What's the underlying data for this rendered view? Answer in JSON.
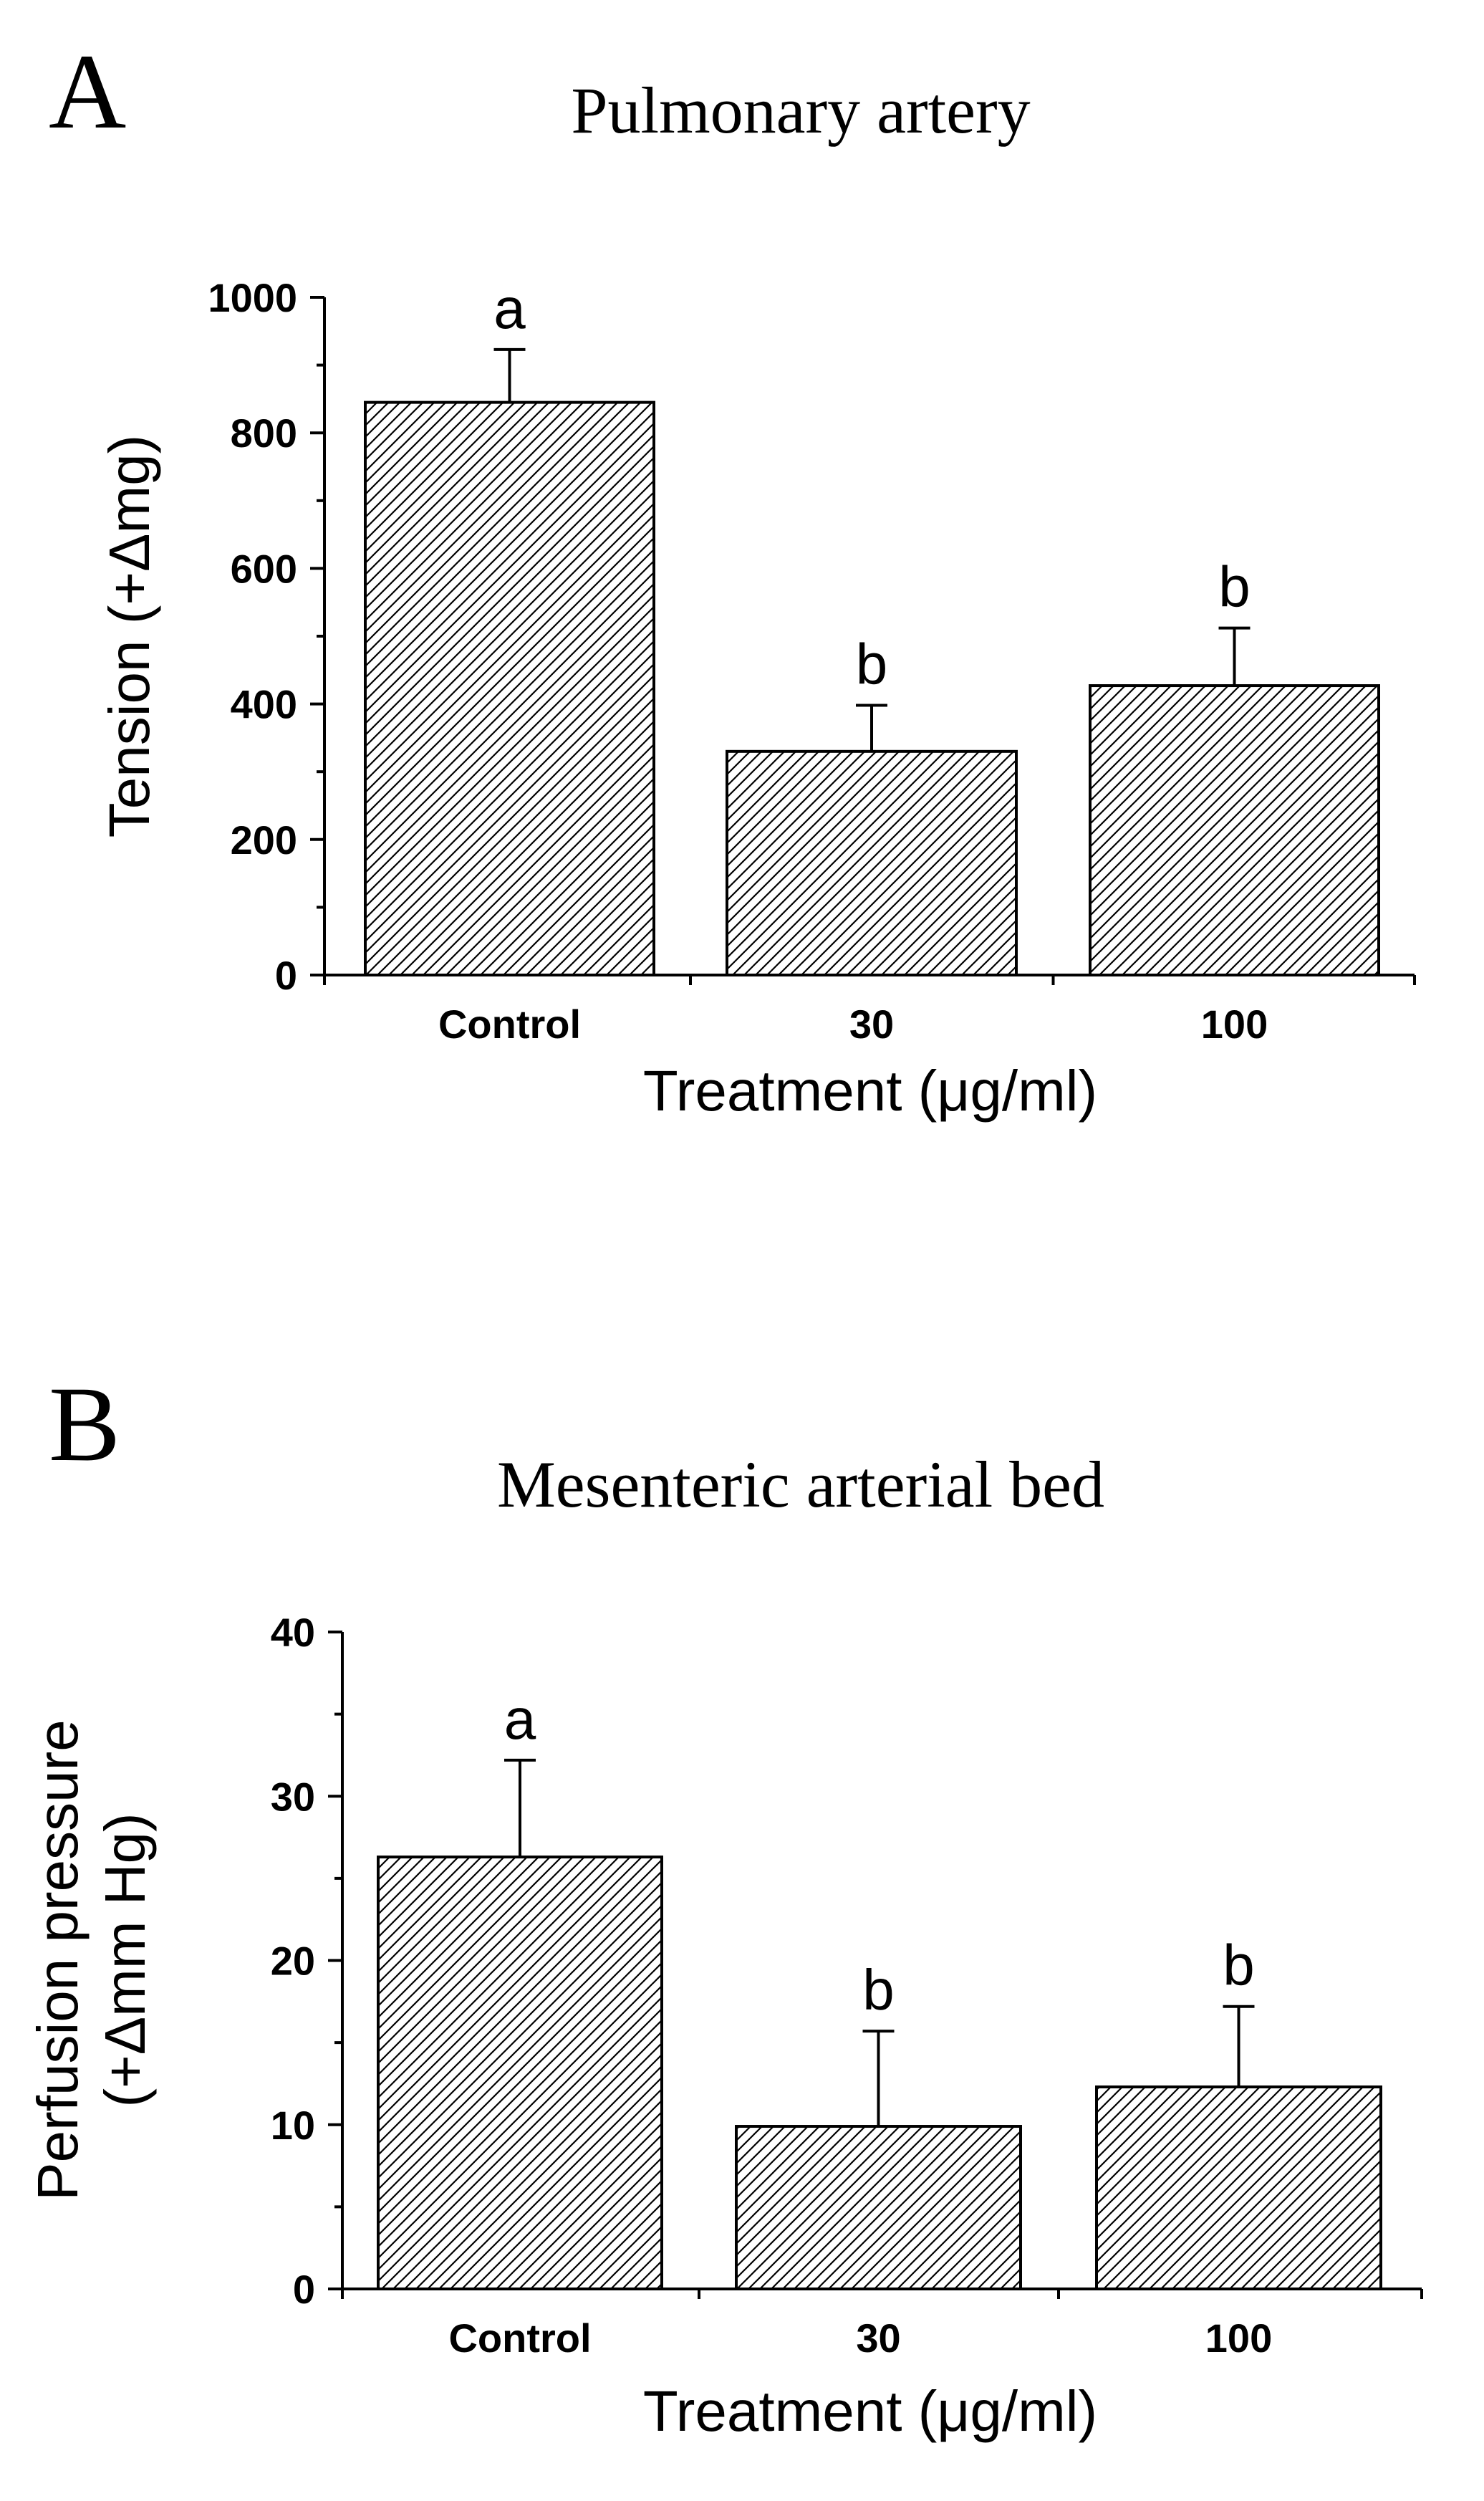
{
  "chart_data": [
    {
      "type": "bar",
      "panel": "A",
      "title": "Pulmonary artery",
      "xlabel": "Treatment (μg/ml)",
      "ylabel": "Tension (+Δmg)",
      "ylim": [
        0,
        1000
      ],
      "yticks": [
        0,
        200,
        400,
        600,
        800,
        1000
      ],
      "categories": [
        "Control",
        "30",
        "100"
      ],
      "values": [
        845,
        330,
        427
      ],
      "errors": [
        78,
        68,
        85
      ],
      "significance": [
        "a",
        "b",
        "b"
      ],
      "fill": "diagonal-hatch"
    },
    {
      "type": "bar",
      "panel": "B",
      "title": "Mesenteric arterial bed",
      "xlabel": "Treatment (μg/ml)",
      "ylabel": [
        "Perfusion pressure",
        "(+Δmm Hg)"
      ],
      "ylim": [
        0,
        40
      ],
      "yticks": [
        0,
        10,
        20,
        30,
        40
      ],
      "categories": [
        "Control",
        "30",
        "100"
      ],
      "values": [
        26.3,
        9.9,
        12.3
      ],
      "errors": [
        5.9,
        5.8,
        4.9
      ],
      "significance": [
        "a",
        "b",
        "b"
      ],
      "fill": "diagonal-hatch"
    }
  ]
}
